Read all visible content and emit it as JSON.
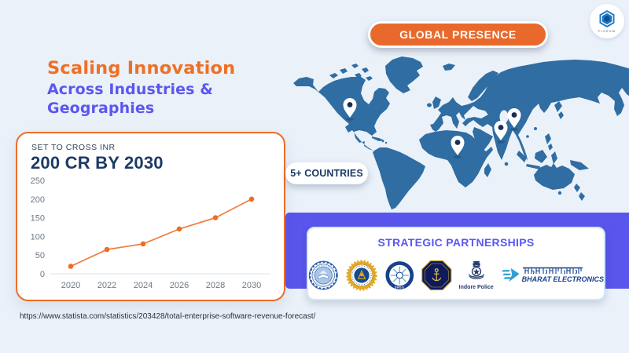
{
  "colors": {
    "background": "#EAF1F9",
    "accent_orange": "#ED6D28",
    "accent_purple": "#5B57EE",
    "navy": "#1C3A66",
    "map_blue": "#2F6DA2",
    "banner_purple": "#5A55ED"
  },
  "brand": {
    "logo_text": "PIXEOM"
  },
  "header": {
    "badge": "GLOBAL PRESENCE"
  },
  "title": {
    "line1": "Scaling Innovation",
    "line2": "Across Industries &",
    "line3": "Geographies"
  },
  "stat_card": {
    "kicker": "SET TO CROSS INR",
    "headline": "200 CR BY 2030"
  },
  "chart_data": {
    "type": "line",
    "x": [
      2020,
      2022,
      2024,
      2026,
      2028,
      2030
    ],
    "values": [
      20,
      65,
      80,
      120,
      150,
      200
    ],
    "yticks": [
      0,
      50,
      100,
      150,
      200,
      250
    ],
    "ylim": [
      0,
      250
    ],
    "title": "",
    "xlabel": "",
    "ylabel": "",
    "grid": false,
    "line_color": "#F07B3C",
    "point_color": "#ED6D28"
  },
  "map": {
    "badge": "5+ COUNTRIES",
    "pin_regions": [
      "North America",
      "Africa",
      "India",
      "East Asia"
    ]
  },
  "partnerships": {
    "title": "STRATEGIC PARTNERSHIPS",
    "logos": [
      {
        "name": "university-seal-blue"
      },
      {
        "name": "institute-seal-gold"
      },
      {
        "name": "drdo-seal",
        "text": "DRDO"
      },
      {
        "name": "indian-navy-crest"
      },
      {
        "name": "indore-police-emblem",
        "text": "Indore Police"
      },
      {
        "name": "bharat-electronics-logo",
        "text_hindi": "भारत इलेक्ट्रॉनिक्स",
        "text": "BHARAT ELECTRONICS"
      }
    ]
  },
  "footer": {
    "source_url": "https://www.statista.com/statistics/203428/total-enterprise-software-revenue-forecast/"
  }
}
